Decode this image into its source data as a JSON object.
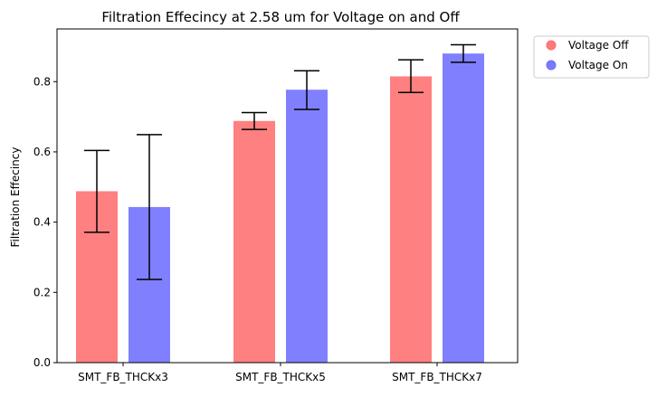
{
  "chart_data": {
    "type": "bar",
    "title": "Filtration Effecincy at 2.58 um for Voltage on and Off",
    "xlabel": "",
    "ylabel": "Filtration Effecincy",
    "categories": [
      "SMT_FB_THCKx3",
      "SMT_FB_THCKx5",
      "SMT_FB_THCKx7"
    ],
    "ylim": [
      0,
      0.95
    ],
    "yticks": [
      0.0,
      0.2,
      0.4,
      0.6,
      0.8
    ],
    "ytick_labels": [
      "0.0",
      "0.2",
      "0.4",
      "0.6",
      "0.8"
    ],
    "grid": false,
    "legend": "outside-upper-right",
    "series": [
      {
        "name": "Voltage Off",
        "color": "#ff8080",
        "marker_color": "#ff6b6b",
        "values": [
          0.488,
          0.688,
          0.815
        ],
        "err_low": [
          0.371,
          0.664,
          0.769
        ],
        "err_high": [
          0.604,
          0.712,
          0.862
        ]
      },
      {
        "name": "Voltage On",
        "color": "#8080ff",
        "marker_color": "#6b6bff",
        "values": [
          0.443,
          0.777,
          0.88
        ],
        "err_low": [
          0.237,
          0.721,
          0.855
        ],
        "err_high": [
          0.649,
          0.831,
          0.905
        ]
      }
    ]
  }
}
